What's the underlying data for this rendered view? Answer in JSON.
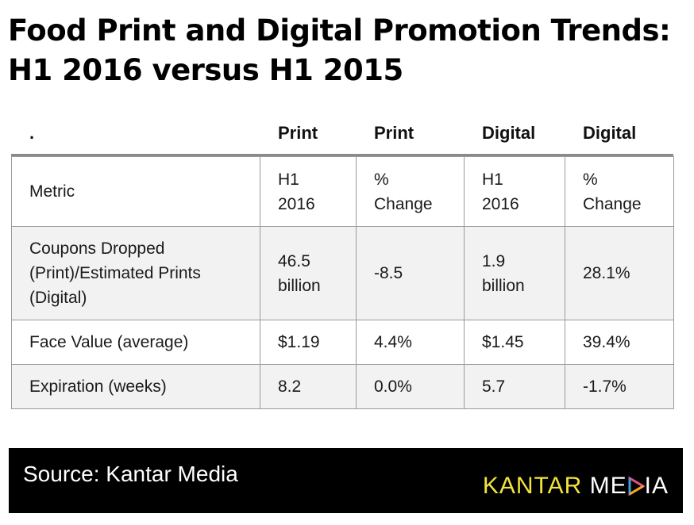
{
  "title": {
    "line1": "Food Print and Digital Promotion Trends:",
    "line2": "H1 2016 versus H1 2015"
  },
  "column_headers": [
    ".",
    "Print",
    "Print",
    "Digital",
    "Digital"
  ],
  "table": {
    "rows": [
      [
        "Metric",
        "H1\n2016",
        "%\nChange",
        "H1\n2016",
        "%\nChange"
      ],
      [
        "Coupons Dropped\n(Print)/Estimated Prints\n(Digital)",
        "46.5\nbillion",
        "-8.5",
        "1.9\nbillion",
        "28.1%"
      ],
      [
        "Face Value (average)",
        "$1.19",
        "4.4%",
        "$1.45",
        "39.4%"
      ],
      [
        "Expiration (weeks)",
        "8.2",
        "0.0%",
        "5.7",
        "-1.7%"
      ]
    ]
  },
  "footer": {
    "source": "Source: Kantar Media",
    "logo_part1": "KANTAR",
    "logo_part2": "ME",
    "logo_part3": "IA"
  },
  "colors": {
    "footer_bg": "#000000",
    "logo_yellow": "#f2e33a",
    "logo_triangle": [
      "#e84e8a",
      "#f5a623",
      "#3aa0dc",
      "#8dc63f"
    ]
  }
}
